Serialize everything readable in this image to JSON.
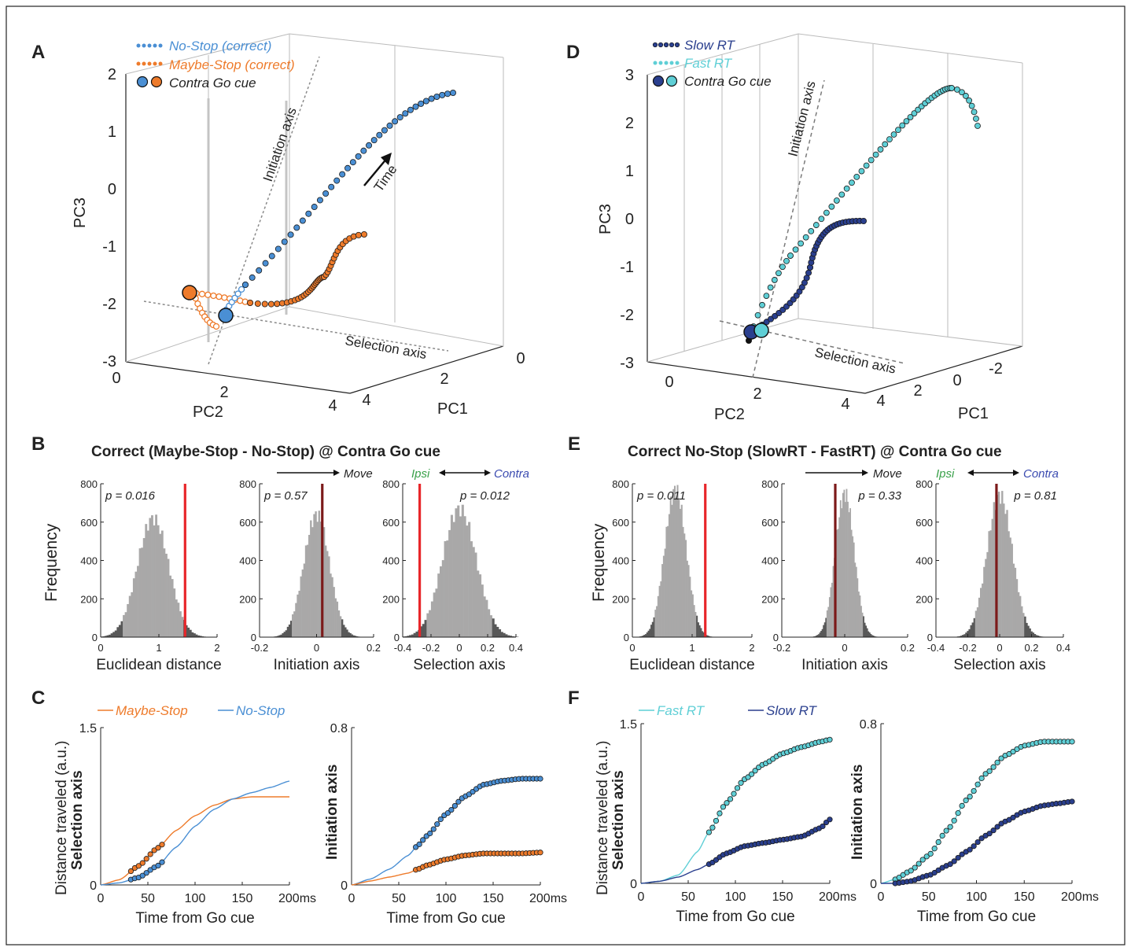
{
  "colors": {
    "no_stop": "#4a8fd4",
    "maybe_stop": "#ee7b2b",
    "slow_rt": "#2a3f8e",
    "fast_rt": "#5fcfd6",
    "null_hist": "#a9a8a8",
    "tail_hist": "#585858",
    "observed_red": "#e8262a",
    "observed_dark": "#7c1a1a",
    "ipsi": "#3aa14a",
    "contra": "#3b4bb0",
    "axis_dashed": "#8a8a8a"
  },
  "panels": {
    "A": {
      "letter": "A",
      "legend": [
        "No-Stop (correct)",
        "Maybe-Stop (correct)",
        "Contra Go cue"
      ],
      "z_label": "PC3",
      "x_label": "PC2",
      "y_label": "PC1",
      "z_ticks": [
        "2",
        "1",
        "0",
        "-1",
        "-2",
        "-3"
      ],
      "x_ticks": [
        "0",
        "2",
        "4"
      ],
      "y_ticks": [
        "4",
        "2",
        "0"
      ],
      "initiation_axis": "Initiation axis",
      "selection_axis": "Selection axis",
      "time_label": "Time"
    },
    "D": {
      "letter": "D",
      "legend": [
        "Slow RT",
        "Fast RT",
        "Contra Go cue"
      ],
      "z_label": "PC3",
      "x_label": "PC2",
      "y_label": "PC1",
      "z_ticks": [
        "3",
        "2",
        "1",
        "0",
        "-1",
        "-2",
        "-3"
      ],
      "x_ticks": [
        "0",
        "2",
        "4"
      ],
      "y_ticks": [
        "4",
        "2",
        "0",
        "-2"
      ],
      "initiation_axis": "Initiation axis",
      "selection_axis": "Selection axis"
    },
    "B": {
      "letter": "B",
      "title": "Correct (Maybe-Stop - No-Stop) @ Contra Go cue",
      "ylabel": "Frequency",
      "move_label": "Move",
      "ipsi_label": "Ipsi",
      "contra_label": "Contra"
    },
    "E": {
      "letter": "E",
      "title": "Correct No-Stop (SlowRT - FastRT) @  Contra Go cue",
      "ylabel": "Frequency",
      "move_label": "Move",
      "ipsi_label": "Ipsi",
      "contra_label": "Contra"
    },
    "C": {
      "letter": "C",
      "legend": [
        "Maybe-Stop",
        "No-Stop"
      ],
      "ylabel_top": "Distance traveled (a.u.)",
      "ylabel_left": "Selection axis",
      "ylabel_right": "Initiation axis",
      "xlabel": "Time from Go cue"
    },
    "F": {
      "letter": "F",
      "legend": [
        "Fast RT",
        "Slow RT"
      ],
      "ylabel_top": "Distance traveled (a.u.)",
      "ylabel_left": "Selection axis",
      "ylabel_right": "Initiation axis",
      "xlabel": "Time from Go cue"
    }
  },
  "chart_data": [
    {
      "id": "A",
      "type": "scatter",
      "projection": "3d",
      "axes": {
        "PC1": [
          0,
          4
        ],
        "PC2": [
          0,
          4
        ],
        "PC3": [
          -3,
          2
        ]
      },
      "series": [
        {
          "name": "No-Stop (correct)",
          "color": "no_stop",
          "points": [
            [
              1.6,
              -2.2
            ],
            [
              1.8,
              -1.8
            ],
            [
              2.0,
              -1.4
            ],
            [
              2.2,
              -1.0
            ],
            [
              2.4,
              -0.6
            ],
            [
              2.6,
              -0.2
            ],
            [
              2.8,
              0.2
            ],
            [
              3.0,
              0.6
            ],
            [
              3.2,
              0.95
            ],
            [
              3.4,
              1.25
            ],
            [
              3.6,
              1.45
            ],
            [
              3.8,
              1.55
            ],
            [
              4.0,
              1.6
            ]
          ]
        },
        {
          "name": "Maybe-Stop (correct)",
          "color": "maybe_stop",
          "points": [
            [
              1.0,
              -1.85
            ],
            [
              1.4,
              -1.95
            ],
            [
              1.8,
              -2.1
            ],
            [
              2.2,
              -2.15
            ],
            [
              2.6,
              -2.05
            ],
            [
              3.0,
              -1.8
            ],
            [
              3.2,
              -1.5
            ],
            [
              3.4,
              -1.2
            ],
            [
              3.6,
              -1.0
            ]
          ]
        }
      ],
      "ticks": {
        "PC3": [
          "2",
          "1",
          "0",
          "-1",
          "-2",
          "-3"
        ],
        "PC2": [
          "0",
          "2",
          "4"
        ],
        "PC1": [
          "4",
          "2",
          "0"
        ]
      }
    },
    {
      "id": "D",
      "type": "scatter",
      "projection": "3d",
      "axes": {
        "PC1": [
          -2,
          4
        ],
        "PC2": [
          0,
          4
        ],
        "PC3": [
          -3,
          3
        ]
      },
      "series": [
        {
          "name": "Slow RT",
          "color": "slow_rt",
          "points": [
            [
              1.8,
              -2.4
            ],
            [
              2.1,
              -2.0
            ],
            [
              2.4,
              -1.4
            ],
            [
              2.7,
              -0.8
            ],
            [
              3.0,
              -0.3
            ],
            [
              3.4,
              -0.1
            ],
            [
              3.8,
              -0.05
            ]
          ]
        },
        {
          "name": "Fast RT",
          "color": "fast_rt",
          "points": [
            [
              1.9,
              -2.3
            ],
            [
              2.3,
              -1.3
            ],
            [
              2.7,
              -0.3
            ],
            [
              3.1,
              0.7
            ],
            [
              3.5,
              1.7
            ],
            [
              3.9,
              2.5
            ],
            [
              4.2,
              2.7
            ],
            [
              4.4,
              2.3
            ]
          ]
        }
      ],
      "ticks": {
        "PC3": [
          "3",
          "2",
          "1",
          "0",
          "-1",
          "-2",
          "-3"
        ],
        "PC2": [
          "0",
          "2",
          "4"
        ],
        "PC1": [
          "4",
          "2",
          "0",
          "-2"
        ]
      }
    },
    {
      "id": "B1",
      "type": "bar",
      "xlabel": "Euclidean distance",
      "ylabel": "Frequency",
      "xlim": [
        0,
        2
      ],
      "ylim": [
        0,
        800
      ],
      "xticks": [
        "0",
        "1",
        "2"
      ],
      "yticks": [
        "0",
        "200",
        "400",
        "600",
        "800"
      ],
      "hist": {
        "mean": 0.9,
        "sd": 0.27,
        "peak": 620
      },
      "observed": 1.45,
      "observed_color": "observed_red",
      "p_label": "p = 0.016",
      "p_pos": "left"
    },
    {
      "id": "B2",
      "type": "bar",
      "xlabel": "Initiation axis",
      "xlim": [
        -0.2,
        0.2
      ],
      "ylim": [
        0,
        800
      ],
      "xticks": [
        "-0.2",
        "0",
        "0.2"
      ],
      "yticks": [
        "0",
        "200",
        "400",
        "600",
        "800"
      ],
      "hist": {
        "mean": 0.0,
        "sd": 0.045,
        "peak": 640
      },
      "observed": 0.02,
      "observed_color": "observed_dark",
      "p_label": "p = 0.57",
      "p_pos": "left"
    },
    {
      "id": "B3",
      "type": "bar",
      "xlabel": "Selection axis",
      "xlim": [
        -0.4,
        0.4
      ],
      "ylim": [
        0,
        800
      ],
      "xticks": [
        "-0.4",
        "-0.2",
        "0",
        "0.2",
        "0.4"
      ],
      "yticks": [
        "0",
        "200",
        "400",
        "600",
        "800"
      ],
      "hist": {
        "mean": 0.0,
        "sd": 0.12,
        "peak": 670
      },
      "observed": -0.28,
      "observed_color": "observed_red",
      "p_label": "p = 0.012",
      "p_pos": "right"
    },
    {
      "id": "E1",
      "type": "bar",
      "xlabel": "Euclidean distance",
      "ylabel": "Frequency",
      "xlim": [
        0,
        2
      ],
      "ylim": [
        0,
        800
      ],
      "xticks": [
        "0",
        "1",
        "2"
      ],
      "yticks": [
        "0",
        "200",
        "400",
        "600",
        "800"
      ],
      "hist": {
        "mean": 0.72,
        "sd": 0.18,
        "peak": 770
      },
      "observed": 1.22,
      "observed_color": "observed_red",
      "p_label": "p = 0.011",
      "p_pos": "left"
    },
    {
      "id": "E2",
      "type": "bar",
      "xlabel": "Initiation axis",
      "xlim": [
        -0.2,
        0.2
      ],
      "ylim": [
        0,
        800
      ],
      "xticks": [
        "-0.2",
        "0",
        "0.2"
      ],
      "yticks": [
        "0",
        "200",
        "400",
        "600",
        "800"
      ],
      "hist": {
        "mean": 0.0,
        "sd": 0.03,
        "peak": 750
      },
      "observed": -0.03,
      "observed_color": "observed_dark",
      "p_label": "p = 0.33",
      "p_pos": "right"
    },
    {
      "id": "E3",
      "type": "bar",
      "xlabel": "Selection axis",
      "xlim": [
        -0.4,
        0.4
      ],
      "ylim": [
        0,
        800
      ],
      "xticks": [
        "-0.4",
        "-0.2",
        "0",
        "0.2",
        "0.4"
      ],
      "yticks": [
        "0",
        "200",
        "400",
        "600",
        "800"
      ],
      "hist": {
        "mean": 0.0,
        "sd": 0.08,
        "peak": 740
      },
      "observed": -0.02,
      "observed_color": "observed_dark",
      "p_label": "p = 0.81",
      "p_pos": "right"
    },
    {
      "id": "C1",
      "type": "line",
      "xlabel": "Time from Go cue",
      "ylabel": "Selection axis",
      "xlim": [
        0,
        200
      ],
      "ylim": [
        0,
        1.5
      ],
      "xticks": [
        "0",
        "50",
        "100",
        "150",
        "200ms"
      ],
      "yticks": [
        "0",
        "1.5"
      ],
      "series": [
        {
          "name": "Maybe-Stop",
          "color": "maybe_stop",
          "x": [
            0,
            20,
            40,
            60,
            80,
            100,
            120,
            140,
            160,
            180,
            200
          ],
          "y": [
            0,
            0.05,
            0.18,
            0.35,
            0.52,
            0.66,
            0.76,
            0.82,
            0.84,
            0.84,
            0.84
          ],
          "dots_x": [
            32,
            65
          ],
          "dots_n": 9
        },
        {
          "name": "No-Stop",
          "color": "no_stop",
          "x": [
            0,
            20,
            40,
            60,
            80,
            100,
            120,
            140,
            160,
            180,
            200
          ],
          "y": [
            0,
            0.02,
            0.07,
            0.18,
            0.36,
            0.56,
            0.72,
            0.82,
            0.88,
            0.93,
            0.99
          ],
          "dots_x": [
            32,
            65
          ],
          "dots_n": 9
        }
      ]
    },
    {
      "id": "C2",
      "type": "line",
      "xlabel": "Time from Go cue",
      "ylabel": "Initiation axis",
      "xlim": [
        0,
        200
      ],
      "ylim": [
        0,
        0.8
      ],
      "xticks": [
        "0",
        "50",
        "100",
        "150",
        "200ms"
      ],
      "yticks": [
        "0",
        "0.8"
      ],
      "series": [
        {
          "name": "No-Stop",
          "color": "no_stop",
          "x": [
            0,
            20,
            40,
            60,
            70,
            80,
            100,
            120,
            140,
            160,
            180,
            200
          ],
          "y": [
            0,
            0.03,
            0.08,
            0.15,
            0.2,
            0.25,
            0.36,
            0.45,
            0.51,
            0.53,
            0.54,
            0.54
          ],
          "dots_x": [
            68,
            200
          ],
          "dots_n": 36
        },
        {
          "name": "Maybe-Stop",
          "color": "maybe_stop",
          "x": [
            0,
            20,
            40,
            60,
            70,
            80,
            100,
            120,
            140,
            160,
            180,
            200
          ],
          "y": [
            0,
            0.02,
            0.04,
            0.06,
            0.08,
            0.1,
            0.13,
            0.15,
            0.16,
            0.16,
            0.16,
            0.165
          ],
          "dots_x": [
            68,
            200
          ],
          "dots_n": 36
        }
      ]
    },
    {
      "id": "F1",
      "type": "line",
      "xlabel": "Time from Go cue",
      "ylabel": "Selection axis",
      "xlim": [
        0,
        200
      ],
      "ylim": [
        0,
        1.5
      ],
      "xticks": [
        "0",
        "50",
        "100",
        "150",
        "200ms"
      ],
      "yticks": [
        "0",
        "1.5"
      ],
      "series": [
        {
          "name": "Fast RT",
          "color": "fast_rt",
          "x": [
            0,
            20,
            40,
            60,
            72,
            90,
            110,
            130,
            150,
            170,
            190,
            200
          ],
          "y": [
            0,
            0.02,
            0.08,
            0.3,
            0.48,
            0.75,
            0.98,
            1.12,
            1.22,
            1.28,
            1.33,
            1.35
          ],
          "dots_x": [
            72,
            200
          ],
          "dots_n": 35
        },
        {
          "name": "Slow RT",
          "color": "slow_rt",
          "x": [
            0,
            20,
            40,
            60,
            72,
            90,
            110,
            130,
            150,
            170,
            190,
            200
          ],
          "y": [
            0,
            0.02,
            0.06,
            0.13,
            0.18,
            0.28,
            0.35,
            0.38,
            0.41,
            0.44,
            0.52,
            0.6
          ],
          "dots_x": [
            72,
            200
          ],
          "dots_n": 35
        }
      ]
    },
    {
      "id": "F2",
      "type": "line",
      "xlabel": "Time from Go cue",
      "ylabel": "Initiation axis",
      "xlim": [
        0,
        200
      ],
      "ylim": [
        0,
        0.8
      ],
      "xticks": [
        "0",
        "50",
        "100",
        "150",
        "200ms"
      ],
      "yticks": [
        "0",
        "0.8"
      ],
      "series": [
        {
          "name": "Fast RT",
          "color": "fast_rt",
          "x": [
            0,
            15,
            30,
            50,
            70,
            90,
            110,
            130,
            150,
            170,
            185,
            200
          ],
          "y": [
            0,
            0.02,
            0.06,
            0.14,
            0.27,
            0.42,
            0.55,
            0.64,
            0.69,
            0.71,
            0.71,
            0.71
          ],
          "dots_x": [
            15,
            200
          ],
          "dots_n": 46
        },
        {
          "name": "Slow RT",
          "color": "slow_rt",
          "x": [
            0,
            15,
            30,
            50,
            70,
            90,
            110,
            130,
            150,
            170,
            185,
            200
          ],
          "y": [
            0,
            0.0,
            0.01,
            0.04,
            0.09,
            0.16,
            0.24,
            0.31,
            0.36,
            0.39,
            0.4,
            0.41
          ],
          "dots_x": [
            15,
            200
          ],
          "dots_n": 46
        }
      ]
    }
  ]
}
